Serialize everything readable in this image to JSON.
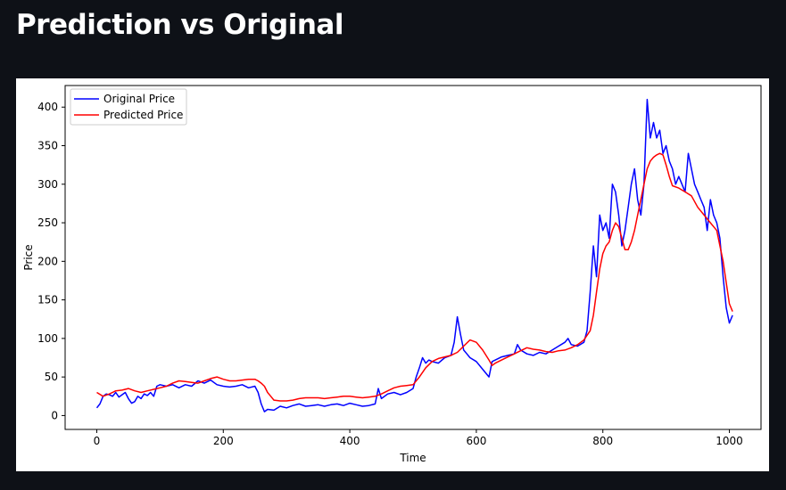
{
  "header": {
    "title": "Prediction vs Original"
  },
  "chart_data": {
    "type": "line",
    "xlabel": "Time",
    "ylabel": "Price",
    "xlim": [
      -50,
      1050
    ],
    "ylim": [
      -18,
      428
    ],
    "xticks": [
      0,
      200,
      400,
      600,
      800,
      1000
    ],
    "yticks": [
      0,
      50,
      100,
      150,
      200,
      250,
      300,
      350,
      400
    ],
    "legend": "upper-left",
    "grid": false,
    "series": [
      {
        "name": "Original Price",
        "color": "#0000ff",
        "x": [
          0,
          5,
          10,
          15,
          20,
          25,
          30,
          35,
          40,
          45,
          50,
          55,
          60,
          65,
          70,
          75,
          80,
          85,
          90,
          95,
          100,
          110,
          120,
          130,
          140,
          150,
          160,
          170,
          180,
          190,
          200,
          210,
          220,
          230,
          240,
          250,
          255,
          260,
          265,
          270,
          280,
          290,
          300,
          310,
          320,
          330,
          340,
          350,
          360,
          370,
          380,
          390,
          400,
          410,
          420,
          430,
          440,
          445,
          450,
          460,
          470,
          480,
          490,
          500,
          505,
          510,
          515,
          520,
          525,
          530,
          540,
          550,
          560,
          565,
          570,
          575,
          580,
          585,
          590,
          600,
          610,
          620,
          625,
          630,
          640,
          650,
          660,
          665,
          670,
          680,
          690,
          700,
          710,
          720,
          730,
          740,
          745,
          750,
          760,
          770,
          775,
          780,
          785,
          790,
          795,
          800,
          805,
          810,
          815,
          820,
          825,
          830,
          835,
          840,
          845,
          850,
          855,
          860,
          865,
          870,
          875,
          880,
          885,
          890,
          895,
          900,
          905,
          910,
          915,
          920,
          925,
          930,
          935,
          940,
          945,
          950,
          955,
          960,
          965,
          970,
          975,
          980,
          985,
          990,
          995,
          1000,
          1005
        ],
        "y": [
          10,
          15,
          25,
          28,
          27,
          25,
          30,
          24,
          27,
          30,
          22,
          16,
          18,
          25,
          22,
          28,
          26,
          30,
          25,
          38,
          40,
          38,
          40,
          36,
          40,
          38,
          45,
          42,
          46,
          40,
          38,
          37,
          38,
          40,
          36,
          38,
          30,
          15,
          5,
          8,
          7,
          12,
          10,
          13,
          15,
          12,
          13,
          14,
          12,
          14,
          15,
          13,
          16,
          14,
          12,
          13,
          15,
          35,
          22,
          28,
          30,
          27,
          30,
          35,
          50,
          62,
          75,
          68,
          72,
          70,
          68,
          75,
          78,
          95,
          128,
          105,
          85,
          80,
          75,
          70,
          60,
          50,
          70,
          72,
          76,
          78,
          80,
          92,
          85,
          80,
          78,
          82,
          80,
          85,
          90,
          95,
          100,
          92,
          90,
          95,
          110,
          160,
          220,
          180,
          260,
          240,
          250,
          230,
          300,
          290,
          260,
          220,
          240,
          270,
          300,
          320,
          280,
          260,
          300,
          410,
          360,
          380,
          360,
          370,
          340,
          350,
          330,
          320,
          300,
          310,
          300,
          290,
          340,
          320,
          300,
          290,
          280,
          270,
          240,
          280,
          260,
          250,
          230,
          180,
          140,
          120,
          130
        ]
      },
      {
        "name": "Predicted Price",
        "color": "#ff0000",
        "x": [
          0,
          10,
          20,
          30,
          40,
          50,
          60,
          70,
          80,
          90,
          100,
          110,
          120,
          130,
          140,
          150,
          160,
          170,
          180,
          190,
          200,
          210,
          220,
          230,
          240,
          250,
          255,
          260,
          265,
          270,
          275,
          280,
          290,
          300,
          310,
          320,
          330,
          340,
          350,
          360,
          370,
          380,
          390,
          400,
          410,
          420,
          430,
          440,
          450,
          460,
          470,
          480,
          490,
          500,
          510,
          520,
          530,
          540,
          550,
          560,
          570,
          580,
          590,
          600,
          610,
          620,
          625,
          630,
          640,
          650,
          660,
          670,
          680,
          690,
          700,
          710,
          720,
          730,
          740,
          750,
          760,
          770,
          780,
          785,
          790,
          795,
          800,
          805,
          810,
          815,
          820,
          825,
          830,
          835,
          840,
          845,
          850,
          855,
          860,
          865,
          870,
          875,
          880,
          885,
          890,
          895,
          900,
          905,
          910,
          920,
          930,
          940,
          950,
          960,
          970,
          980,
          990,
          1000,
          1005
        ],
        "y": [
          30,
          25,
          28,
          32,
          33,
          35,
          32,
          30,
          32,
          34,
          36,
          38,
          42,
          45,
          44,
          43,
          42,
          45,
          48,
          50,
          47,
          45,
          45,
          46,
          47,
          47,
          45,
          42,
          38,
          30,
          25,
          20,
          19,
          19,
          20,
          22,
          23,
          23,
          23,
          22,
          23,
          24,
          25,
          25,
          24,
          23,
          24,
          25,
          28,
          32,
          36,
          38,
          39,
          40,
          50,
          62,
          70,
          74,
          76,
          78,
          82,
          90,
          98,
          95,
          85,
          72,
          65,
          68,
          72,
          76,
          80,
          84,
          88,
          86,
          85,
          83,
          82,
          84,
          85,
          88,
          92,
          98,
          110,
          130,
          160,
          190,
          210,
          220,
          225,
          240,
          250,
          245,
          230,
          215,
          215,
          225,
          240,
          260,
          280,
          300,
          320,
          330,
          335,
          338,
          340,
          338,
          325,
          310,
          298,
          295,
          290,
          285,
          270,
          260,
          250,
          240,
          200,
          145,
          135
        ]
      }
    ]
  }
}
